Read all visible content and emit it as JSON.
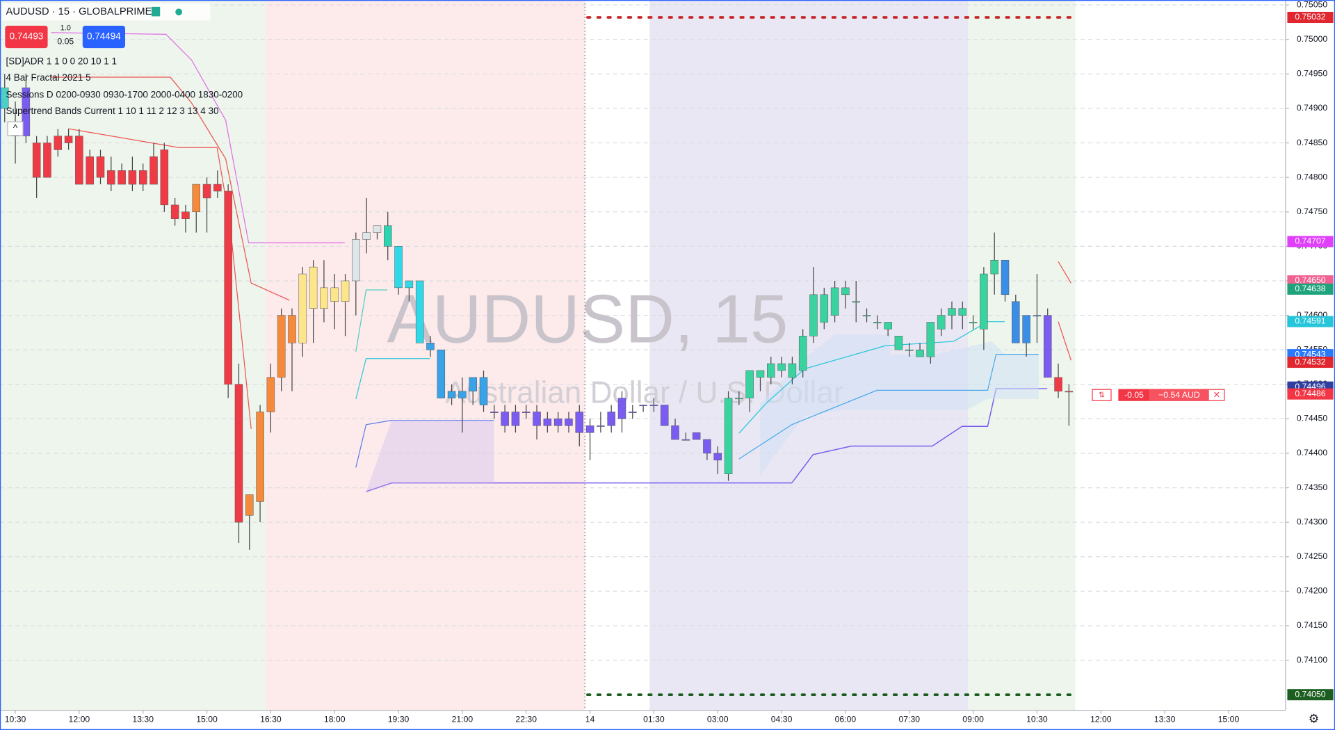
{
  "header": {
    "symbol": "AUDUSD · 15 · GLOBALPRIME",
    "bid": "0.74493",
    "ask": "0.74494",
    "lot": "1.0",
    "spread": "0.05",
    "indicators": [
      "[SD]ADR 1 1 0 0 20 10 1 1",
      "4 Bar Fractal 2021 5",
      "Sessions D 0200-0930 0930-1700 2000-0400 1830-0200",
      "Supertrend Bands Current 1 10 1 11 2 12 3 13 4 30"
    ]
  },
  "watermark": {
    "symbol": "AUDUSD, 15",
    "description": "Australian Dollar / U.S. Dollar"
  },
  "position": {
    "qty": "-0.05",
    "pnl": "−0.54 AUD"
  },
  "chart_data": {
    "type": "candlestick",
    "grid": true,
    "xlim": [
      -1.44,
      119.36
    ],
    "xticks": [
      {
        "value": 0,
        "label": "10:30"
      },
      {
        "value": 6,
        "label": "12:00"
      },
      {
        "value": 12,
        "label": "13:30"
      },
      {
        "value": 18,
        "label": "15:00"
      },
      {
        "value": 24,
        "label": "16:30"
      },
      {
        "value": 30,
        "label": "18:00"
      },
      {
        "value": 36,
        "label": "19:30"
      },
      {
        "value": 42,
        "label": "21:00"
      },
      {
        "value": 48,
        "label": "22:30"
      },
      {
        "value": 54,
        "label": "14"
      },
      {
        "value": 60,
        "label": "01:30"
      },
      {
        "value": 66,
        "label": "03:00"
      },
      {
        "value": 72,
        "label": "04:30"
      },
      {
        "value": 78,
        "label": "06:00"
      },
      {
        "value": 84,
        "label": "07:30"
      },
      {
        "value": 90,
        "label": "09:00"
      },
      {
        "value": 96,
        "label": "10:30"
      },
      {
        "value": 102,
        "label": "12:00"
      },
      {
        "value": 108,
        "label": "13:30"
      },
      {
        "value": 114,
        "label": "15:00"
      }
    ],
    "ylim": [
      0.740274,
      0.750572
    ],
    "yticks": [
      {
        "value": 0.741,
        "label": "0.74100"
      },
      {
        "value": 0.7415,
        "label": "0.74150"
      },
      {
        "value": 0.742,
        "label": "0.74200"
      },
      {
        "value": 0.7425,
        "label": "0.74250"
      },
      {
        "value": 0.743,
        "label": "0.74300"
      },
      {
        "value": 0.7435,
        "label": "0.74350"
      },
      {
        "value": 0.744,
        "label": "0.74400"
      },
      {
        "value": 0.7445,
        "label": "0.74450"
      },
      {
        "value": 0.745,
        "label": "0.74500"
      },
      {
        "value": 0.7455,
        "label": "0.74550"
      },
      {
        "value": 0.746,
        "label": "0.74600"
      },
      {
        "value": 0.7465,
        "label": "0.74650"
      },
      {
        "value": 0.747,
        "label": "0.74700"
      },
      {
        "value": 0.7475,
        "label": "0.74750"
      },
      {
        "value": 0.748,
        "label": "0.74800"
      },
      {
        "value": 0.7485,
        "label": "0.74850"
      },
      {
        "value": 0.749,
        "label": "0.74900"
      },
      {
        "value": 0.7495,
        "label": "0.74950"
      },
      {
        "value": 0.75,
        "label": "0.75000"
      },
      {
        "value": 0.7505,
        "label": "0.75050"
      }
    ],
    "price_labels": [
      {
        "value": 0.75032,
        "label": "0.75032",
        "color": "#e0262f"
      },
      {
        "value": 0.74707,
        "label": "0.74707",
        "color": "#e040fb"
      },
      {
        "value": 0.7465,
        "label": "0.74650",
        "color": "#f06292"
      },
      {
        "value": 0.74638,
        "label": "0.74638",
        "color": "#1fa37c"
      },
      {
        "value": 0.74591,
        "label": "0.74591",
        "color": "#e0262f"
      },
      {
        "value": 0.74591,
        "label": "0.74591",
        "color": "#26c6da"
      },
      {
        "value": 0.74543,
        "label": "0.74543",
        "color": "#2979ff"
      },
      {
        "value": 0.74532,
        "label": "0.74532",
        "color": "#e0262f"
      },
      {
        "value": 0.74496,
        "label": "0.74496",
        "color": "#303f9f"
      },
      {
        "value": 0.74486,
        "label": "0.74486",
        "color": "#f23645"
      },
      {
        "value": 0.7405,
        "label": "0.74050",
        "color": "#1b5e20"
      }
    ],
    "levels": [
      {
        "value": 0.75032,
        "color": "#c62828"
      },
      {
        "value": 0.7405,
        "color": "#1b5e20"
      }
    ],
    "x": [
      -1,
      0,
      1,
      2,
      3,
      4,
      5,
      6,
      7,
      8,
      9,
      10,
      11,
      12,
      13,
      14,
      15,
      16,
      17,
      18,
      19,
      20,
      21,
      22,
      23,
      24,
      25,
      26,
      27,
      28,
      29,
      30,
      31,
      32,
      33,
      34,
      35,
      36,
      37,
      38,
      39,
      40,
      41,
      42,
      43,
      44,
      45,
      46,
      47,
      48,
      49,
      50,
      51,
      52,
      53,
      54,
      55,
      56,
      57,
      58,
      59,
      60,
      61,
      62,
      63,
      64,
      65,
      66,
      67,
      68,
      69,
      70,
      71,
      72,
      73,
      74,
      75,
      76,
      77,
      78,
      79,
      80,
      81,
      82,
      83,
      84,
      85,
      86,
      87,
      88,
      89,
      90,
      91,
      92,
      93,
      94,
      95,
      96,
      97,
      98,
      99
    ],
    "ohlc": [
      [
        0.749,
        0.7495,
        0.7488,
        0.7493
      ],
      [
        0.7487,
        0.7491,
        0.7482,
        0.7486
      ],
      [
        0.7493,
        0.7495,
        0.7485,
        0.7486
      ],
      [
        0.7485,
        0.7486,
        0.7477,
        0.748
      ],
      [
        0.7485,
        0.7486,
        0.748,
        0.748
      ],
      [
        0.7486,
        0.7487,
        0.7483,
        0.7484
      ],
      [
        0.7486,
        0.7487,
        0.7484,
        0.7485
      ],
      [
        0.7486,
        0.7487,
        0.7479,
        0.7479
      ],
      [
        0.7483,
        0.7484,
        0.7479,
        0.7479
      ],
      [
        0.7483,
        0.7484,
        0.7479,
        0.748
      ],
      [
        0.7481,
        0.7483,
        0.7478,
        0.7479
      ],
      [
        0.7481,
        0.7482,
        0.7479,
        0.7479
      ],
      [
        0.7481,
        0.7483,
        0.7478,
        0.7479
      ],
      [
        0.7481,
        0.7482,
        0.7478,
        0.7479
      ],
      [
        0.7483,
        0.7485,
        0.7479,
        0.7479
      ],
      [
        0.7484,
        0.7485,
        0.7475,
        0.7476
      ],
      [
        0.7476,
        0.7477,
        0.7473,
        0.7474
      ],
      [
        0.7475,
        0.7476,
        0.7472,
        0.7474
      ],
      [
        0.7475,
        0.7479,
        0.7472,
        0.7479
      ],
      [
        0.7479,
        0.748,
        0.7472,
        0.7477
      ],
      [
        0.7479,
        0.7481,
        0.7477,
        0.7478
      ],
      [
        0.7478,
        0.7479,
        0.7448,
        0.745
      ],
      [
        0.745,
        0.7453,
        0.7427,
        0.743
      ],
      [
        0.7431,
        0.7434,
        0.7426,
        0.7434
      ],
      [
        0.7433,
        0.7447,
        0.743,
        0.7446
      ],
      [
        0.7446,
        0.7453,
        0.7443,
        0.7451
      ],
      [
        0.7451,
        0.7461,
        0.7449,
        0.746
      ],
      [
        0.7456,
        0.7461,
        0.7449,
        0.746
      ],
      [
        0.7456,
        0.7467,
        0.7454,
        0.7466
      ],
      [
        0.7461,
        0.7468,
        0.7456,
        0.7467
      ],
      [
        0.7461,
        0.7468,
        0.7459,
        0.7464
      ],
      [
        0.7462,
        0.7466,
        0.7458,
        0.7464
      ],
      [
        0.7462,
        0.7466,
        0.7457,
        0.7465
      ],
      [
        0.7465,
        0.7472,
        0.746,
        0.7471
      ],
      [
        0.7471,
        0.7477,
        0.7469,
        0.7472
      ],
      [
        0.7472,
        0.7473,
        0.7471,
        0.7473
      ],
      [
        0.747,
        0.7475,
        0.7468,
        0.7473
      ],
      [
        0.747,
        0.747,
        0.7463,
        0.7464
      ],
      [
        0.7464,
        0.7465,
        0.7462,
        0.7465
      ],
      [
        0.7465,
        0.7465,
        0.7456,
        0.7456
      ],
      [
        0.7456,
        0.7457,
        0.7454,
        0.7455
      ],
      [
        0.7455,
        0.7455,
        0.7448,
        0.7448
      ],
      [
        0.7449,
        0.745,
        0.7447,
        0.7448
      ],
      [
        0.7449,
        0.7451,
        0.7443,
        0.7448
      ],
      [
        0.7449,
        0.7451,
        0.7447,
        0.7451
      ],
      [
        0.7451,
        0.7452,
        0.7446,
        0.7447
      ],
      [
        0.7446,
        0.7447,
        0.7445,
        0.7446
      ],
      [
        0.7446,
        0.7447,
        0.7443,
        0.7444
      ],
      [
        0.7444,
        0.7447,
        0.7443,
        0.7446
      ],
      [
        0.7446,
        0.7447,
        0.7445,
        0.7446
      ],
      [
        0.7446,
        0.7447,
        0.7442,
        0.7444
      ],
      [
        0.7445,
        0.7446,
        0.7443,
        0.7444
      ],
      [
        0.7445,
        0.7446,
        0.7443,
        0.7444
      ],
      [
        0.7445,
        0.7446,
        0.7443,
        0.7444
      ],
      [
        0.7446,
        0.7447,
        0.7441,
        0.7443
      ],
      [
        0.7444,
        0.7445,
        0.7439,
        0.7443
      ],
      [
        0.7444,
        0.7446,
        0.7443,
        0.7444
      ],
      [
        0.7444,
        0.7447,
        0.7443,
        0.7446
      ],
      [
        0.7445,
        0.7449,
        0.7443,
        0.7448
      ],
      [
        0.7446,
        0.7447,
        0.7445,
        0.7446
      ],
      [
        0.7447,
        0.7447,
        0.7446,
        0.7447
      ],
      [
        0.7447,
        0.7448,
        0.7446,
        0.7447
      ],
      [
        0.7447,
        0.7447,
        0.7444,
        0.7444
      ],
      [
        0.7444,
        0.7445,
        0.7442,
        0.7442
      ],
      [
        0.7442,
        0.7443,
        0.7442,
        0.7442
      ],
      [
        0.7443,
        0.7443,
        0.7442,
        0.7442
      ],
      [
        0.7442,
        0.7442,
        0.7439,
        0.744
      ],
      [
        0.744,
        0.7441,
        0.7437,
        0.7439
      ],
      [
        0.7437,
        0.7449,
        0.7436,
        0.7448
      ],
      [
        0.7448,
        0.7449,
        0.7447,
        0.7448
      ],
      [
        0.7448,
        0.7452,
        0.7446,
        0.7452
      ],
      [
        0.7451,
        0.7452,
        0.7449,
        0.7452
      ],
      [
        0.7451,
        0.7454,
        0.745,
        0.7453
      ],
      [
        0.7452,
        0.7454,
        0.7451,
        0.7453
      ],
      [
        0.7451,
        0.7454,
        0.745,
        0.7453
      ],
      [
        0.7452,
        0.7458,
        0.7451,
        0.7457
      ],
      [
        0.7457,
        0.7467,
        0.7456,
        0.7463
      ],
      [
        0.7459,
        0.7464,
        0.7458,
        0.7463
      ],
      [
        0.746,
        0.7465,
        0.7459,
        0.7464
      ],
      [
        0.7463,
        0.7465,
        0.7461,
        0.7464
      ],
      [
        0.7462,
        0.7465,
        0.7459,
        0.7462
      ],
      [
        0.746,
        0.7461,
        0.7459,
        0.746
      ],
      [
        0.7459,
        0.746,
        0.7458,
        0.7459
      ],
      [
        0.7459,
        0.7459,
        0.7457,
        0.7458
      ],
      [
        0.7457,
        0.7457,
        0.7455,
        0.7455
      ],
      [
        0.7455,
        0.7456,
        0.7454,
        0.7455
      ],
      [
        0.7455,
        0.7456,
        0.7454,
        0.7454
      ],
      [
        0.7454,
        0.7459,
        0.7453,
        0.7459
      ],
      [
        0.7458,
        0.7461,
        0.7457,
        0.746
      ],
      [
        0.746,
        0.7462,
        0.7458,
        0.7461
      ],
      [
        0.746,
        0.7462,
        0.7458,
        0.7461
      ],
      [
        0.7459,
        0.746,
        0.7458,
        0.7459
      ],
      [
        0.7458,
        0.7467,
        0.7455,
        0.7466
      ],
      [
        0.7466,
        0.7472,
        0.7463,
        0.7468
      ],
      [
        0.7468,
        0.7468,
        0.7462,
        0.7463
      ],
      [
        0.7462,
        0.7463,
        0.7456,
        0.7456
      ],
      [
        0.7456,
        0.746,
        0.7454,
        0.746
      ],
      [
        0.746,
        0.7466,
        0.7456,
        0.746
      ],
      [
        0.746,
        0.7461,
        0.7451,
        0.7451
      ],
      [
        0.7451,
        0.7453,
        0.7448,
        0.7449
      ],
      [
        0.7449,
        0.745,
        0.7444,
        0.7449
      ]
    ],
    "colors": [
      "#4dd0c4",
      "#d9dee3",
      "#7b5cf0",
      "#ef3b45",
      "#ef3b45",
      "#ef3b45",
      "#ef3b45",
      "#ef3b45",
      "#ef3b45",
      "#ef3b45",
      "#ef3b45",
      "#ef3b45",
      "#ef3b45",
      "#ef3b45",
      "#ef3b45",
      "#ef3b45",
      "#ef3b45",
      "#ef3b45",
      "#f58a3c",
      "#ef3b45",
      "#ef3b45",
      "#ef3b45",
      "#ef3b45",
      "#f58a3c",
      "#f58a3c",
      "#f58a3c",
      "#f58a3c",
      "#f58a3c",
      "#fde68a",
      "#fde68a",
      "#fde68a",
      "#fde68a",
      "#fde68a",
      "#dfe6ea",
      "#dfe6ea",
      "#dfe6ea",
      "#2ed3b0",
      "#31d8e8",
      "#31d8e8",
      "#31d8e8",
      "#3aa2e6",
      "#3aa2e6",
      "#3aa2e6",
      "#3aa2e6",
      "#3aa2e6",
      "#3aa2e6",
      "#7b5cf0",
      "#7b5cf0",
      "#7b5cf0",
      "#7b5cf0",
      "#7b5cf0",
      "#7b5cf0",
      "#7b5cf0",
      "#7b5cf0",
      "#7b5cf0",
      "#7b5cf0",
      "#7b5cf0",
      "#7b5cf0",
      "#7b5cf0",
      "#7b5cf0",
      "#7b5cf0",
      "#7b5cf0",
      "#7b5cf0",
      "#7b5cf0",
      "#7b5cf0",
      "#7b5cf0",
      "#7b5cf0",
      "#7b5cf0",
      "#3ad3a0",
      "#3ad3a0",
      "#3ad3a0",
      "#3ad3a0",
      "#3ad3a0",
      "#3ad3a0",
      "#3ad3a0",
      "#3ad3a0",
      "#3ad3a0",
      "#3ad3a0",
      "#3ad3a0",
      "#3ad3a0",
      "#3ad3a0",
      "#3ad3a0",
      "#3ad3a0",
      "#3ad3a0",
      "#3ad3a0",
      "#3ad3a0",
      "#3ad3a0",
      "#3ad3a0",
      "#3ad3a0",
      "#3ad3a0",
      "#3ad3a0",
      "#3ad3a0",
      "#3ad3a0",
      "#3ad3a0",
      "#3a8ee6",
      "#3a8ee6",
      "#3a8ee6",
      "#3a8ee6",
      "#7b5cf0",
      "#ef3b45",
      "#ef3b45"
    ]
  }
}
